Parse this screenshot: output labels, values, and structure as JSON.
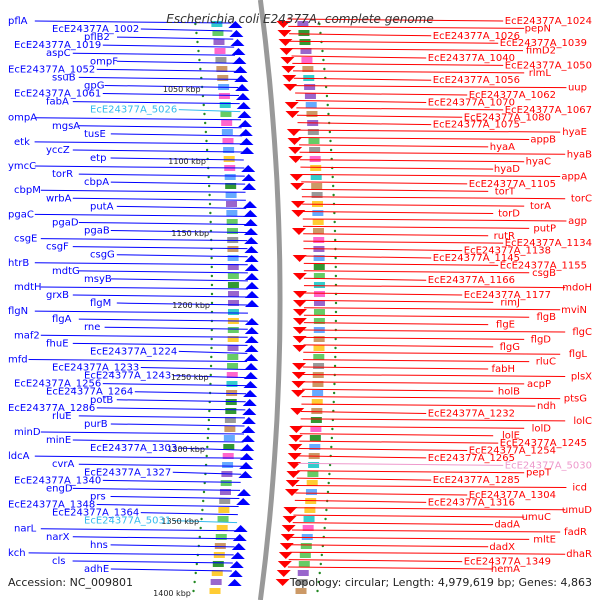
{
  "title": "Escherichia coli E24377A, complete genome",
  "footer": {
    "accession": "Accession: NC_009801",
    "summary": "Topology: circular; Length: 4,979,619 bp; Genes: 4,863"
  },
  "colors": {
    "plus_strand": "#ff0000",
    "minus_strand": "#0000ff",
    "rna_gene": "#33bbee",
    "pseudo_gene": "#ee99cc",
    "backbone": "#999999",
    "tick_mark": "#228822"
  },
  "kbp_ticks": [
    "1050 kbp",
    "1100 kbp",
    "1150 kbp",
    "1200 kbp",
    "1250 kbp",
    "1300 kbp",
    "1350 kbp",
    "1400 kbp"
  ],
  "left_labels": [
    {
      "text": "pflA",
      "kind": "minus"
    },
    {
      "text": "EcE24377A_1002",
      "kind": "minus"
    },
    {
      "text": "pflB2",
      "kind": "minus"
    },
    {
      "text": "EcE24377A_1019",
      "kind": "minus"
    },
    {
      "text": "aspC",
      "kind": "minus"
    },
    {
      "text": "ompF",
      "kind": "minus"
    },
    {
      "text": "EcE24377A_1052",
      "kind": "minus"
    },
    {
      "text": "ssuB",
      "kind": "minus"
    },
    {
      "text": "gpG",
      "kind": "minus"
    },
    {
      "text": "EcE24377A_1061",
      "kind": "minus"
    },
    {
      "text": "fabA",
      "kind": "minus"
    },
    {
      "text": "EcE24377A_5026",
      "kind": "rna"
    },
    {
      "text": "ompA",
      "kind": "minus"
    },
    {
      "text": "mgsA",
      "kind": "minus"
    },
    {
      "text": "tusE",
      "kind": "minus"
    },
    {
      "text": "etk",
      "kind": "minus"
    },
    {
      "text": "yccZ",
      "kind": "minus"
    },
    {
      "text": "etp",
      "kind": "minus"
    },
    {
      "text": "ymcC",
      "kind": "minus"
    },
    {
      "text": "torR",
      "kind": "minus"
    },
    {
      "text": "cbpA",
      "kind": "minus"
    },
    {
      "text": "cbpM",
      "kind": "minus"
    },
    {
      "text": "wrbA",
      "kind": "minus"
    },
    {
      "text": "putA",
      "kind": "minus"
    },
    {
      "text": "pgaC",
      "kind": "minus"
    },
    {
      "text": "pgaD",
      "kind": "minus"
    },
    {
      "text": "pgaB",
      "kind": "minus"
    },
    {
      "text": "csgE",
      "kind": "minus"
    },
    {
      "text": "csgF",
      "kind": "minus"
    },
    {
      "text": "csgG",
      "kind": "minus"
    },
    {
      "text": "htrB",
      "kind": "minus"
    },
    {
      "text": "mdtG",
      "kind": "minus"
    },
    {
      "text": "msyB",
      "kind": "minus"
    },
    {
      "text": "mdtH",
      "kind": "minus"
    },
    {
      "text": "grxB",
      "kind": "minus"
    },
    {
      "text": "flgM",
      "kind": "minus"
    },
    {
      "text": "flgN",
      "kind": "minus"
    },
    {
      "text": "flgA",
      "kind": "minus"
    },
    {
      "text": "rne",
      "kind": "minus"
    },
    {
      "text": "maf2",
      "kind": "minus"
    },
    {
      "text": "fhuE",
      "kind": "minus"
    },
    {
      "text": "EcE24377A_1224",
      "kind": "minus"
    },
    {
      "text": "mfd",
      "kind": "minus"
    },
    {
      "text": "EcE24377A_1233",
      "kind": "minus"
    },
    {
      "text": "EcE24377A_1243",
      "kind": "minus"
    },
    {
      "text": "EcE24377A_1256",
      "kind": "minus"
    },
    {
      "text": "EcE24377A_1264",
      "kind": "minus"
    },
    {
      "text": "potB",
      "kind": "minus"
    },
    {
      "text": "EcE24377A_1286",
      "kind": "minus"
    },
    {
      "text": "rluE",
      "kind": "minus"
    },
    {
      "text": "purB",
      "kind": "minus"
    },
    {
      "text": "minD",
      "kind": "minus"
    },
    {
      "text": "minE",
      "kind": "minus"
    },
    {
      "text": "EcE24377A_1303",
      "kind": "minus"
    },
    {
      "text": "ldcA",
      "kind": "minus"
    },
    {
      "text": "cvrA",
      "kind": "minus"
    },
    {
      "text": "EcE24377A_1327",
      "kind": "minus"
    },
    {
      "text": "EcE24377A_1340",
      "kind": "minus"
    },
    {
      "text": "engD",
      "kind": "minus"
    },
    {
      "text": "prs",
      "kind": "minus"
    },
    {
      "text": "EcE24377A_1348",
      "kind": "minus"
    },
    {
      "text": "EcE24377A_1364",
      "kind": "minus"
    },
    {
      "text": "EcE24377A_5031",
      "kind": "rna"
    },
    {
      "text": "narL",
      "kind": "minus"
    },
    {
      "text": "narX",
      "kind": "minus"
    },
    {
      "text": "hns",
      "kind": "minus"
    },
    {
      "text": "kch",
      "kind": "minus"
    },
    {
      "text": "cls",
      "kind": "minus"
    },
    {
      "text": "adhE",
      "kind": "minus"
    }
  ],
  "right_labels": [
    {
      "text": "EcE24377A_1024",
      "kind": "plus"
    },
    {
      "text": "pepN",
      "kind": "plus"
    },
    {
      "text": "EcE24377A_1026",
      "kind": "plus"
    },
    {
      "text": "EcE24377A_1039",
      "kind": "plus"
    },
    {
      "text": "fimD2",
      "kind": "plus"
    },
    {
      "text": "EcE24377A_1040",
      "kind": "plus"
    },
    {
      "text": "EcE24377A_1050",
      "kind": "plus"
    },
    {
      "text": "rlmL",
      "kind": "plus"
    },
    {
      "text": "EcE24377A_1056",
      "kind": "plus"
    },
    {
      "text": "uup",
      "kind": "plus"
    },
    {
      "text": "EcE24377A_1062",
      "kind": "plus"
    },
    {
      "text": "EcE24377A_1070",
      "kind": "plus"
    },
    {
      "text": "EcE24377A_1067",
      "kind": "plus"
    },
    {
      "text": "EcE24377A_1080",
      "kind": "plus"
    },
    {
      "text": "EcE24377A_1075",
      "kind": "plus"
    },
    {
      "text": "hyaE",
      "kind": "plus"
    },
    {
      "text": "appB",
      "kind": "plus"
    },
    {
      "text": "hyaA",
      "kind": "plus"
    },
    {
      "text": "hyaB",
      "kind": "plus"
    },
    {
      "text": "hyaC",
      "kind": "plus"
    },
    {
      "text": "hyaD",
      "kind": "plus"
    },
    {
      "text": "appA",
      "kind": "plus"
    },
    {
      "text": "EcE24377A_1105",
      "kind": "plus"
    },
    {
      "text": "torT",
      "kind": "plus"
    },
    {
      "text": "torC",
      "kind": "plus"
    },
    {
      "text": "torA",
      "kind": "plus"
    },
    {
      "text": "torD",
      "kind": "plus"
    },
    {
      "text": "agp",
      "kind": "plus"
    },
    {
      "text": "putP",
      "kind": "plus"
    },
    {
      "text": "rutR",
      "kind": "plus"
    },
    {
      "text": "EcE24377A_1134",
      "kind": "plus"
    },
    {
      "text": "EcE24377A_1138",
      "kind": "plus"
    },
    {
      "text": "EcE24377A_1145",
      "kind": "plus"
    },
    {
      "text": "EcE24377A_1155",
      "kind": "plus"
    },
    {
      "text": "csgB",
      "kind": "plus"
    },
    {
      "text": "EcE24377A_1166",
      "kind": "plus"
    },
    {
      "text": "mdoH",
      "kind": "plus"
    },
    {
      "text": "EcE24377A_1177",
      "kind": "plus"
    },
    {
      "text": "rimJ",
      "kind": "plus"
    },
    {
      "text": "mviN",
      "kind": "plus"
    },
    {
      "text": "flgB",
      "kind": "plus"
    },
    {
      "text": "flgE",
      "kind": "plus"
    },
    {
      "text": "flgC",
      "kind": "plus"
    },
    {
      "text": "flgD",
      "kind": "plus"
    },
    {
      "text": "flgG",
      "kind": "plus"
    },
    {
      "text": "flgL",
      "kind": "plus"
    },
    {
      "text": "rluC",
      "kind": "plus"
    },
    {
      "text": "fabH",
      "kind": "plus"
    },
    {
      "text": "plsX",
      "kind": "plus"
    },
    {
      "text": "acpP",
      "kind": "plus"
    },
    {
      "text": "holB",
      "kind": "plus"
    },
    {
      "text": "ptsG",
      "kind": "plus"
    },
    {
      "text": "ndh",
      "kind": "plus"
    },
    {
      "text": "EcE24377A_1232",
      "kind": "plus"
    },
    {
      "text": "lolC",
      "kind": "plus"
    },
    {
      "text": "lolD",
      "kind": "plus"
    },
    {
      "text": "lolE",
      "kind": "plus"
    },
    {
      "text": "EcE24377A_1245",
      "kind": "plus"
    },
    {
      "text": "EcE24377A_1254",
      "kind": "plus"
    },
    {
      "text": "EcE24377A_1265",
      "kind": "plus"
    },
    {
      "text": "EcE24377A_5030",
      "kind": "pseudo"
    },
    {
      "text": "pepT",
      "kind": "plus"
    },
    {
      "text": "EcE24377A_1285",
      "kind": "plus"
    },
    {
      "text": "icd",
      "kind": "plus"
    },
    {
      "text": "EcE24377A_1304",
      "kind": "plus"
    },
    {
      "text": "EcE24377A_1316",
      "kind": "plus"
    },
    {
      "text": "umuD",
      "kind": "plus"
    },
    {
      "text": "umuC",
      "kind": "plus"
    },
    {
      "text": "dadA",
      "kind": "plus"
    },
    {
      "text": "fadR",
      "kind": "plus"
    },
    {
      "text": "mltE",
      "kind": "plus"
    },
    {
      "text": "dadX",
      "kind": "plus"
    },
    {
      "text": "dhaR",
      "kind": "plus"
    },
    {
      "text": "EcE24377A_1349",
      "kind": "plus"
    },
    {
      "text": "hemA",
      "kind": "plus"
    }
  ]
}
